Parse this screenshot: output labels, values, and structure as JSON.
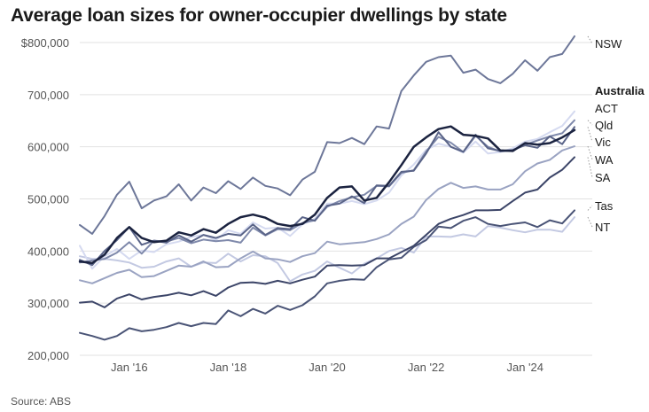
{
  "title": "Average loan sizes for owner-occupier dwellings by state",
  "source": "Source: ABS",
  "chart_data": {
    "type": "line",
    "title": "Average loan sizes for owner-occupier dwellings by state",
    "xlabel": "",
    "ylabel": "",
    "ylim": [
      200000,
      800000
    ],
    "xlim": [
      2015.0,
      2025.25
    ],
    "y_ticks": [
      {
        "value": 800000,
        "label": "$800,000"
      },
      {
        "value": 700000,
        "label": "700,000"
      },
      {
        "value": 600000,
        "label": "600,000"
      },
      {
        "value": 500000,
        "label": "500,000"
      },
      {
        "value": 400000,
        "label": "400,000"
      },
      {
        "value": 300000,
        "label": "300,000"
      },
      {
        "value": 200000,
        "label": "200,000"
      }
    ],
    "x_ticks": [
      {
        "value": 2016,
        "label": "Jan '16"
      },
      {
        "value": 2018,
        "label": "Jan '18"
      },
      {
        "value": 2020,
        "label": "Jan '20"
      },
      {
        "value": 2022,
        "label": "Jan '22"
      },
      {
        "value": 2024,
        "label": "Jan '24"
      }
    ],
    "x": [
      2015.0,
      2015.25,
      2015.5,
      2015.75,
      2016.0,
      2016.25,
      2016.5,
      2016.75,
      2017.0,
      2017.25,
      2017.5,
      2017.75,
      2018.0,
      2018.25,
      2018.5,
      2018.75,
      2019.0,
      2019.25,
      2019.5,
      2019.75,
      2020.0,
      2020.25,
      2020.5,
      2020.75,
      2021.0,
      2021.25,
      2021.5,
      2021.75,
      2022.0,
      2022.25,
      2022.5,
      2022.75,
      2023.0,
      2023.25,
      2023.5,
      2023.75,
      2024.0,
      2024.25,
      2024.5,
      2024.75,
      2025.0
    ],
    "series": [
      {
        "name": "NSW",
        "color": "#6d7799",
        "width": 2,
        "values": [
          450000,
          433000,
          467000,
          508000,
          533000,
          482000,
          497000,
          505000,
          528000,
          497000,
          522000,
          511000,
          534000,
          519000,
          541000,
          525000,
          520000,
          507000,
          537000,
          552000,
          609000,
          607000,
          617000,
          605000,
          639000,
          635000,
          707000,
          737000,
          763000,
          772000,
          775000,
          742000,
          748000,
          730000,
          722000,
          740000,
          766000,
          746000,
          772000,
          778000,
          812000
        ]
      },
      {
        "name": "Australia",
        "color": "#1b2340",
        "width": 2.5,
        "values": [
          380000,
          377000,
          393000,
          425000,
          446000,
          425000,
          417000,
          420000,
          436000,
          430000,
          442000,
          435000,
          452000,
          465000,
          470000,
          464000,
          452000,
          448000,
          452000,
          470000,
          502000,
          522000,
          524000,
          497000,
          502000,
          532000,
          565000,
          600000,
          618000,
          634000,
          639000,
          623000,
          621000,
          616000,
          593000,
          592000,
          607000,
          604000,
          607000,
          618000,
          632000
        ]
      },
      {
        "name": "ACT",
        "color": "#d5daf0",
        "width": 2,
        "values": [
          410000,
          366000,
          390000,
          404000,
          385000,
          401000,
          398000,
          413000,
          418000,
          427000,
          431000,
          421000,
          440000,
          433000,
          455000,
          443000,
          445000,
          429000,
          451000,
          462000,
          491000,
          491000,
          496000,
          490000,
          497000,
          512000,
          545000,
          566000,
          594000,
          606000,
          600000,
          589000,
          610000,
          587000,
          590000,
          597000,
          610000,
          615000,
          628000,
          640000,
          668000
        ]
      },
      {
        "name": "Qld",
        "color": "#7f89ab",
        "width": 2,
        "values": [
          378000,
          382000,
          385000,
          397000,
          417000,
          395000,
          420000,
          418000,
          425000,
          415000,
          422000,
          419000,
          421000,
          416000,
          445000,
          430000,
          442000,
          440000,
          454000,
          459000,
          485000,
          496000,
          503000,
          508000,
          525000,
          524000,
          550000,
          555000,
          591000,
          619000,
          608000,
          590000,
          621000,
          600000,
          591000,
          593000,
          604000,
          612000,
          620000,
          626000,
          651000
        ]
      },
      {
        "name": "Vic",
        "color": "#5a6488",
        "width": 2,
        "values": [
          383000,
          373000,
          400000,
          421000,
          446000,
          412000,
          420000,
          416000,
          430000,
          418000,
          431000,
          425000,
          433000,
          430000,
          451000,
          431000,
          444000,
          442000,
          465000,
          458000,
          487000,
          491000,
          505000,
          492000,
          526000,
          525000,
          552000,
          554000,
          587000,
          628000,
          600000,
          590000,
          623000,
          597000,
          592000,
          594000,
          603000,
          598000,
          620000,
          605000,
          638000
        ]
      },
      {
        "name": "WA",
        "color": "#9aa3c2",
        "width": 2,
        "values": [
          344000,
          338000,
          348000,
          358000,
          364000,
          350000,
          352000,
          362000,
          372000,
          370000,
          380000,
          369000,
          370000,
          386000,
          399000,
          386000,
          384000,
          379000,
          390000,
          396000,
          418000,
          413000,
          415000,
          417000,
          423000,
          432000,
          452000,
          466000,
          498000,
          519000,
          531000,
          521000,
          524000,
          518000,
          518000,
          528000,
          553000,
          568000,
          575000,
          593000,
          601000
        ]
      },
      {
        "name": "SA",
        "color": "#3c4568",
        "width": 2,
        "values": [
          301000,
          303000,
          292000,
          309000,
          317000,
          307000,
          312000,
          315000,
          320000,
          315000,
          323000,
          314000,
          330000,
          339000,
          340000,
          337000,
          343000,
          338000,
          345000,
          351000,
          372000,
          373000,
          372000,
          373000,
          386000,
          386000,
          398000,
          410000,
          431000,
          452000,
          462000,
          469000,
          478000,
          478000,
          479000,
          496000,
          512000,
          518000,
          541000,
          556000,
          580000
        ]
      },
      {
        "name": "Tas",
        "color": "#4a5476",
        "width": 2,
        "values": [
          243000,
          237000,
          230000,
          237000,
          252000,
          246000,
          249000,
          254000,
          262000,
          256000,
          262000,
          260000,
          286000,
          275000,
          289000,
          280000,
          295000,
          287000,
          296000,
          313000,
          338000,
          343000,
          346000,
          345000,
          369000,
          384000,
          387000,
          408000,
          421000,
          447000,
          444000,
          458000,
          465000,
          452000,
          448000,
          452000,
          455000,
          446000,
          459000,
          453000,
          478000
        ]
      },
      {
        "name": "NT",
        "color": "#c3c9e2",
        "width": 2,
        "values": [
          390000,
          385000,
          385000,
          382000,
          378000,
          368000,
          370000,
          380000,
          386000,
          370000,
          378000,
          377000,
          395000,
          380000,
          392000,
          390000,
          377000,
          342000,
          355000,
          362000,
          380000,
          368000,
          357000,
          376000,
          386000,
          400000,
          406000,
          397000,
          428000,
          428000,
          427000,
          432000,
          428000,
          448000,
          445000,
          440000,
          436000,
          441000,
          441000,
          437000,
          465000
        ]
      }
    ],
    "labels": [
      {
        "series": "NSW",
        "text": "NSW",
        "bold": false
      },
      {
        "series": "Australia",
        "text": "Australia",
        "bold": true
      },
      {
        "series": "ACT",
        "text": "ACT",
        "bold": false
      },
      {
        "series": "Qld",
        "text": "Qld",
        "bold": false
      },
      {
        "series": "Vic",
        "text": "Vic",
        "bold": false
      },
      {
        "series": "WA",
        "text": "WA",
        "bold": false
      },
      {
        "series": "SA",
        "text": "SA",
        "bold": false
      },
      {
        "series": "Tas",
        "text": "Tas",
        "bold": false
      },
      {
        "series": "NT",
        "text": "NT",
        "bold": false
      }
    ],
    "grid": "horizontal",
    "legend": "direct labels at right"
  }
}
